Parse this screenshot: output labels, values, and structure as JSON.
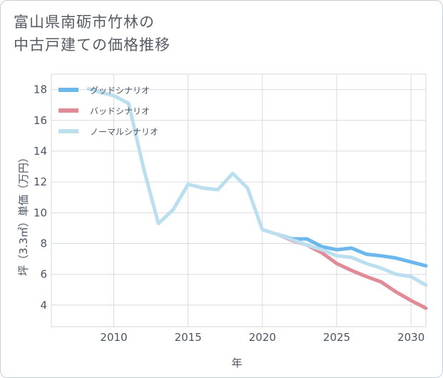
{
  "title_lines": [
    "富山県南砺市竹林の",
    "中古戸建ての価格推移"
  ],
  "chart_data": {
    "type": "line",
    "title": "富山県南砺市竹林の中古戸建ての価格推移",
    "xlabel": "年",
    "ylabel": "坪（3.3㎡）単価（万円）",
    "xlim": [
      2005.8,
      2031
    ],
    "ylim": [
      2.6,
      19.0
    ],
    "xticks": [
      2010,
      2015,
      2020,
      2025,
      2030
    ],
    "yticks": [
      4,
      6,
      8,
      10,
      12,
      14,
      16,
      18
    ],
    "legend_position": "top-left",
    "series": [
      {
        "name": "グッドシナリオ",
        "color": "#6cb8ec",
        "x": [
          2021,
          2022,
          2023,
          2024,
          2025,
          2026,
          2027,
          2028,
          2029,
          2030,
          2031
        ],
        "y": [
          8.6,
          8.3,
          8.3,
          7.8,
          7.6,
          7.7,
          7.3,
          7.2,
          7.05,
          6.8,
          6.55
        ]
      },
      {
        "name": "バッドシナリオ",
        "color": "#e08b95",
        "x": [
          2021,
          2022,
          2023,
          2024,
          2025,
          2026,
          2027,
          2028,
          2029,
          2030,
          2031
        ],
        "y": [
          8.6,
          8.2,
          7.9,
          7.4,
          6.7,
          6.25,
          5.85,
          5.5,
          4.85,
          4.3,
          3.8
        ]
      },
      {
        "name": "ノーマルシナリオ",
        "color": "#bcdff0",
        "x": [
          2008.3,
          2009,
          2010,
          2011,
          2012,
          2013,
          2014,
          2015,
          2016,
          2017,
          2018,
          2019,
          2020,
          2021,
          2022,
          2023,
          2024,
          2025,
          2026,
          2027,
          2028,
          2029,
          2030,
          2031
        ],
        "y": [
          18.05,
          17.85,
          17.6,
          17.1,
          12.9,
          9.3,
          10.2,
          11.85,
          11.6,
          11.5,
          12.55,
          11.6,
          8.9,
          8.6,
          8.25,
          7.9,
          7.6,
          7.2,
          7.1,
          6.7,
          6.4,
          6.0,
          5.85,
          5.3
        ]
      }
    ]
  }
}
